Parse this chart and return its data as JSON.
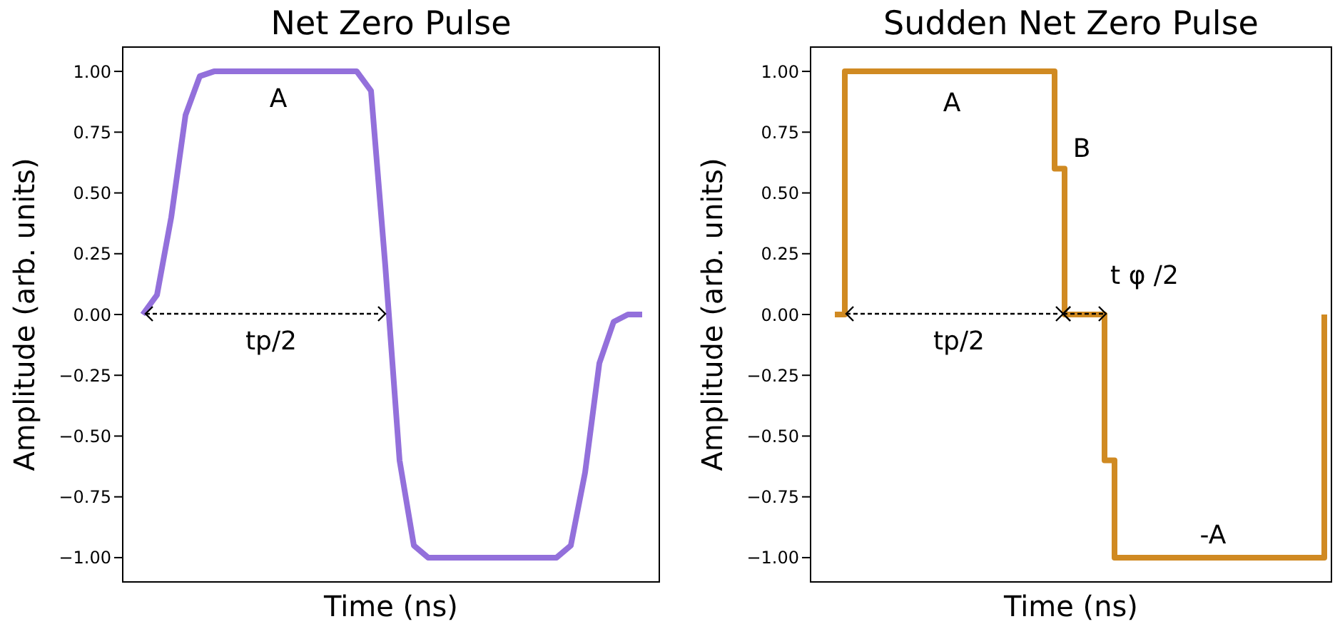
{
  "chart_data": [
    {
      "type": "line",
      "title": "Net Zero Pulse",
      "xlabel": "Time (ns)",
      "ylabel": "Amplitude (arb. units)",
      "color": "#9370db",
      "tick_labels": "y",
      "grid": false,
      "legend": false,
      "categories": [
        null,
        null,
        null,
        null,
        null,
        null,
        null,
        null,
        null,
        null,
        null,
        null,
        null,
        null,
        null,
        null,
        null,
        null,
        null,
        null,
        null,
        null,
        null,
        null,
        null,
        null,
        null,
        null,
        null,
        null,
        null,
        null,
        null,
        null,
        null,
        null
      ],
      "values": [
        0,
        0.08,
        0.4,
        0.82,
        0.98,
        1,
        1,
        1,
        1,
        1,
        1,
        1,
        1,
        1,
        1,
        1,
        0.92,
        0.2,
        -0.6,
        -0.95,
        -1,
        -1,
        -1,
        -1,
        -1,
        -1,
        -1,
        -1,
        -1,
        -1,
        -0.95,
        -0.65,
        -0.2,
        -0.03,
        0,
        0
      ],
      "ylim": [
        -1.1,
        1.1
      ],
      "yticks": [
        {
          "value": -1,
          "label": "−1.00"
        },
        {
          "value": -0.75,
          "label": "−0.75"
        },
        {
          "value": -0.5,
          "label": "−0.50"
        },
        {
          "value": -0.25,
          "label": "−0.25"
        },
        {
          "value": 0,
          "label": "0.00"
        },
        {
          "value": 0.25,
          "label": "0.25"
        },
        {
          "value": 0.5,
          "label": "0.50"
        },
        {
          "value": 0.75,
          "label": "0.75"
        },
        {
          "value": 1,
          "label": "1.00"
        }
      ],
      "annotations": [
        "A",
        "tp/2"
      ]
    },
    {
      "type": "step",
      "title": "Sudden Net Zero Pulse",
      "xlabel": "Time (ns)",
      "ylabel": "Amplitude (arb. units)",
      "color": "#d08a22",
      "tick_labels": "y",
      "grid": false,
      "legend": false,
      "categories": [
        null,
        null,
        null,
        null,
        null,
        null,
        null,
        null,
        null,
        null,
        null,
        null,
        null,
        null,
        null,
        null,
        null,
        null,
        null,
        null,
        null,
        null,
        null,
        null,
        null,
        null,
        null,
        null,
        null,
        null,
        null,
        null,
        null,
        null,
        null,
        null,
        null,
        null,
        null,
        null,
        null,
        null,
        null,
        null,
        null,
        null,
        null,
        null,
        null,
        null
      ],
      "values": [
        0,
        1,
        1,
        1,
        1,
        1,
        1,
        1,
        1,
        1,
        1,
        1,
        1,
        1,
        1,
        1,
        1,
        1,
        1,
        1,
        1,
        1,
        0.6,
        0,
        0,
        0,
        0,
        -0.6,
        -1,
        -1,
        -1,
        -1,
        -1,
        -1,
        -1,
        -1,
        -1,
        -1,
        -1,
        -1,
        -1,
        -1,
        -1,
        -1,
        -1,
        -1,
        -1,
        -1,
        -1,
        0
      ],
      "ylim": [
        -1.1,
        1.1
      ],
      "yticks": [
        {
          "value": -1,
          "label": "−1.00"
        },
        {
          "value": -0.75,
          "label": "−0.75"
        },
        {
          "value": -0.5,
          "label": "−0.50"
        },
        {
          "value": -0.25,
          "label": "−0.25"
        },
        {
          "value": 0,
          "label": "0.00"
        },
        {
          "value": 0.25,
          "label": "0.25"
        },
        {
          "value": 0.5,
          "label": "0.50"
        },
        {
          "value": 0.75,
          "label": "0.75"
        },
        {
          "value": 1,
          "label": "1.00"
        }
      ],
      "annotations": [
        "A",
        "B",
        "t φ /2",
        "tp/2",
        "-A"
      ]
    }
  ]
}
